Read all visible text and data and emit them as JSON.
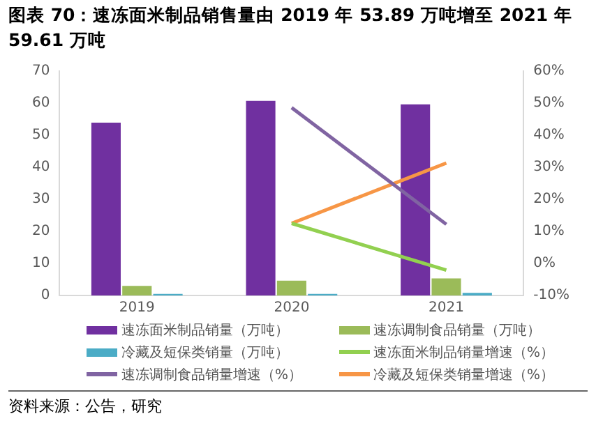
{
  "chart_data": {
    "type": "bar",
    "title": "图表 70：速冻面米制品销售量由 2019 年 53.89 万吨增至 2021 年 59.61 万吨",
    "categories": [
      "2019",
      "2020",
      "2021"
    ],
    "series": [
      {
        "name": "速冻面米制品销量（万吨）",
        "color": "#7030a0",
        "values": [
          53.89,
          60.7,
          59.61
        ]
      },
      {
        "name": "速冻调制食品销量（万吨）",
        "color": "#9bbb59",
        "values": [
          3.0,
          4.6,
          5.3
        ]
      },
      {
        "name": "冷藏及短保类销量（万吨）",
        "color": "#4bacc6",
        "values": [
          0.5,
          0.5,
          0.8
        ]
      },
      {
        "name": "速冻面米制品销量增速（%）",
        "type": "line",
        "axis": "y2",
        "color": "#92d050",
        "values": [
          null,
          12.5,
          -2.1
        ]
      },
      {
        "name": "速冻调制食品销量增速（%）",
        "type": "line",
        "axis": "y2",
        "color": "#8064a2",
        "values": [
          null,
          48.6,
          12.2
        ]
      },
      {
        "name": "冷藏及短保类销量增速（%）",
        "type": "line",
        "axis": "y2",
        "color": "#f79646",
        "values": [
          null,
          12.5,
          31.3
        ]
      }
    ],
    "ylim": [
      0,
      70
    ],
    "yticks": [
      0,
      10,
      20,
      30,
      40,
      50,
      60,
      70
    ],
    "y2lim": [
      -10,
      60
    ],
    "y2ticks": [
      {
        "value": -10,
        "label": "-10%"
      },
      {
        "value": 0,
        "label": "0%"
      },
      {
        "value": 10,
        "label": "10%"
      },
      {
        "value": 20,
        "label": "20%"
      },
      {
        "value": 30,
        "label": "30%"
      },
      {
        "value": 40,
        "label": "40%"
      },
      {
        "value": 50,
        "label": "50%"
      },
      {
        "value": 60,
        "label": "60%"
      }
    ],
    "grid": false,
    "legend": "bottom",
    "marker": "none",
    "line_style": "solid",
    "annotations": [
      "资料来源：公告，研究"
    ]
  }
}
